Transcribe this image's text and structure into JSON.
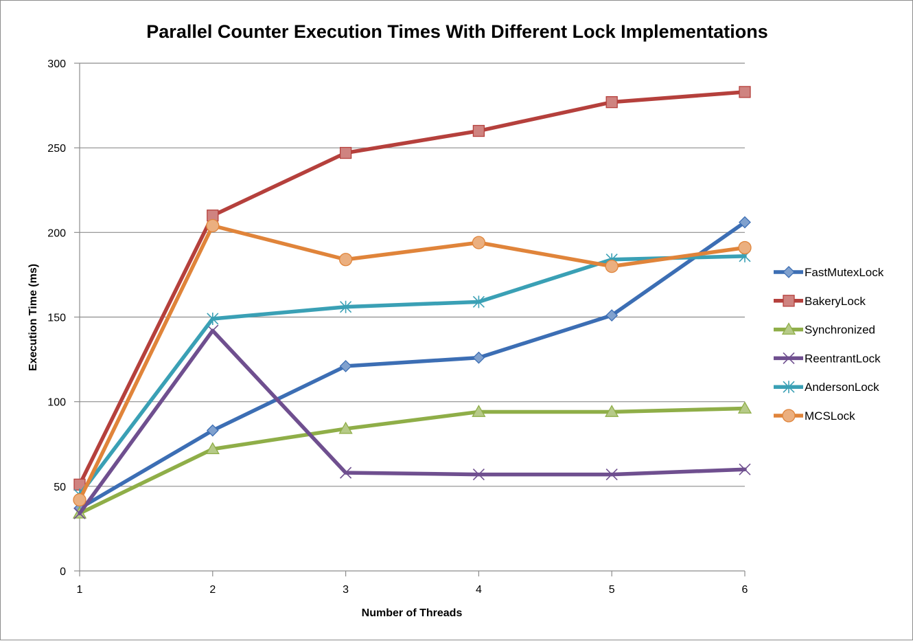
{
  "chart_data": {
    "type": "line",
    "title": "Parallel Counter Execution Times With Different Lock Implementations",
    "xlabel": "Number of Threads",
    "ylabel": "Execution Time (ms)",
    "x": [
      1,
      2,
      3,
      4,
      5,
      6
    ],
    "x_tick_labels": [
      "1",
      "2",
      "3",
      "4",
      "5",
      "6"
    ],
    "y_tick_labels": [
      "0",
      "50",
      "100",
      "150",
      "200",
      "250",
      "300"
    ],
    "ylim": [
      0,
      300
    ],
    "grid": "horizontal",
    "legend_position": "right",
    "series": [
      {
        "name": "FastMutexLock",
        "color": "#3c6eb4",
        "marker": "diamond",
        "values": [
          37,
          83,
          121,
          126,
          151,
          206
        ]
      },
      {
        "name": "BakeryLock",
        "color": "#b5403c",
        "marker": "square",
        "values": [
          51,
          210,
          247,
          260,
          277,
          283
        ]
      },
      {
        "name": "Synchronized",
        "color": "#8fae48",
        "marker": "triangle",
        "values": [
          34,
          72,
          84,
          94,
          94,
          96
        ]
      },
      {
        "name": "ReentrantLock",
        "color": "#6f4f8f",
        "marker": "x",
        "values": [
          34,
          142,
          58,
          57,
          57,
          60
        ]
      },
      {
        "name": "AndersonLock",
        "color": "#3aa0b5",
        "marker": "star",
        "values": [
          45,
          149,
          156,
          159,
          184,
          186
        ]
      },
      {
        "name": "MCSLock",
        "color": "#e0843a",
        "marker": "circle",
        "values": [
          42,
          204,
          184,
          194,
          180,
          191
        ]
      }
    ]
  }
}
